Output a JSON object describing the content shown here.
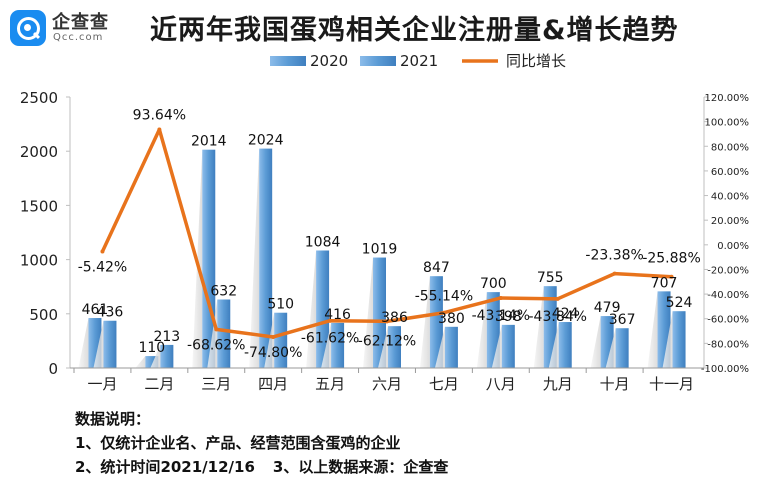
{
  "logo": {
    "name": "企查查",
    "sub": "Qcc.com"
  },
  "title": "近两年我国蛋鸡相关企业注册量&增长趋势",
  "chart_data": {
    "type": "bar",
    "title": "近两年我国蛋鸡相关企业注册量&增长趋势",
    "categories": [
      "一月",
      "二月",
      "三月",
      "四月",
      "五月",
      "六月",
      "七月",
      "八月",
      "九月",
      "十月",
      "十一月"
    ],
    "series": [
      {
        "name": "2020",
        "type": "bar",
        "axis": "left",
        "values": [
          461,
          110,
          2014,
          2024,
          1084,
          1019,
          847,
          700,
          755,
          479,
          707
        ]
      },
      {
        "name": "2021",
        "type": "bar",
        "axis": "left",
        "values": [
          436,
          213,
          632,
          510,
          416,
          386,
          380,
          398,
          424,
          367,
          524
        ]
      },
      {
        "name": "同比增长",
        "type": "line",
        "axis": "right",
        "values": [
          -5.42,
          93.64,
          -68.62,
          -74.8,
          -61.62,
          -62.12,
          -55.14,
          -43.14,
          -43.84,
          -23.38,
          -25.88
        ]
      }
    ],
    "value_labels": {
      "2020": [
        "461",
        "110",
        "2014",
        "2024",
        "1084",
        "1019",
        "847",
        "700",
        "755",
        "479",
        "707"
      ],
      "2021": [
        "436",
        "213",
        "632",
        "510",
        "416",
        "386",
        "380",
        "398",
        "424",
        "367",
        "524"
      ],
      "同比增长": [
        "-5.42%",
        "93.64%",
        "-68.62%",
        "-74.80%",
        "-61.62%",
        "-62.12%",
        "-55.14%",
        "-43.14%",
        "-43.84%",
        "-23.38%",
        "-25.88%"
      ]
    },
    "y_left": {
      "range": [
        0,
        2500
      ],
      "ticks": [
        "0",
        "500",
        "1000",
        "1500",
        "2000",
        "2500"
      ]
    },
    "y_right": {
      "range": [
        -100,
        120
      ],
      "ticks": [
        "-100.00%",
        "-80.00%",
        "-60.00%",
        "-40.00%",
        "-20.00%",
        "0.00%",
        "20.00%",
        "40.00%",
        "60.00%",
        "80.00%",
        "100.00%",
        "120.00%"
      ]
    },
    "legend": {
      "position": "top",
      "items": [
        "2020",
        "2021",
        "同比增长"
      ]
    },
    "colors": {
      "bar_2020": "#5b9bd5",
      "bar_2021": "#5b9bd5",
      "line": "#e8731c"
    },
    "grid": false
  },
  "notes": {
    "heading": "数据说明：",
    "line1": "1、仅统计企业名、产品、经营范围含蛋鸡的企业",
    "line2a": "2、统计时间2021/12/16",
    "line2b": "3、以上数据来源：企查查"
  }
}
